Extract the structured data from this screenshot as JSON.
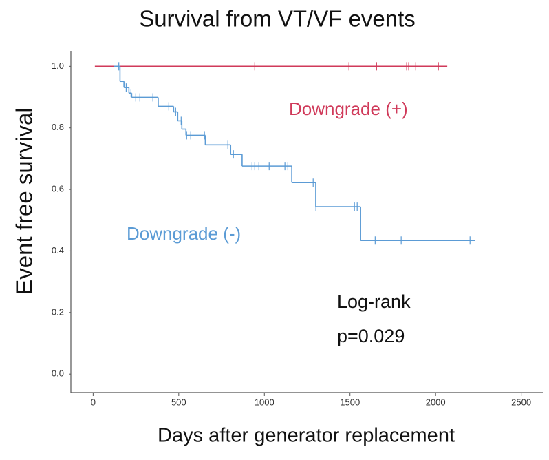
{
  "chart_data": {
    "type": "kaplan-meier",
    "title": "Survival from VT/VF events",
    "x_label": "Days after generator replacement",
    "y_label": "Event free survival",
    "xlim": [
      -130,
      2630
    ],
    "ylim": [
      -0.06,
      1.05
    ],
    "xticks": [
      0,
      500,
      1000,
      1500,
      2000,
      2500
    ],
    "yticks": [
      {
        "value": 0,
        "label": "0.0"
      },
      {
        "value": 0.2,
        "label": "0.2"
      },
      {
        "value": 0.4,
        "label": "0.4"
      },
      {
        "value": 0.6,
        "label": "0.6"
      },
      {
        "value": 0.8,
        "label": "0.8"
      },
      {
        "value": 1,
        "label": "1.0"
      }
    ],
    "grid": false,
    "series": [
      {
        "name": "Downgrade (+)",
        "color": "#d03a5a",
        "x": [
          10,
          2068
        ],
        "values": [
          1,
          1
        ],
        "censored": [
          944,
          1494,
          1655,
          1831,
          1843,
          1884,
          2016
        ]
      },
      {
        "name": "Downgrade (-)",
        "color": "#5b9bd5",
        "x": [
          120,
          157,
          180,
          209,
          225,
          380,
          470,
          494,
          518,
          542,
          655,
          803,
          870,
          1160,
          1300,
          1562,
          2230
        ],
        "values": [
          1,
          0.951,
          0.931,
          0.913,
          0.899,
          0.87,
          0.852,
          0.823,
          0.796,
          0.776,
          0.745,
          0.714,
          0.676,
          0.622,
          0.544,
          0.434,
          0.434
        ],
        "censored": [
          150,
          193,
          221,
          249,
          273,
          349,
          442,
          482,
          514,
          546,
          570,
          650,
          787,
          819,
          928,
          944,
          968,
          1028,
          1120,
          1137,
          1285,
          1301,
          1526,
          1542,
          1647,
          1799,
          2201
        ]
      }
    ],
    "annotations": [
      "Log-rank",
      "p=0.029"
    ]
  }
}
